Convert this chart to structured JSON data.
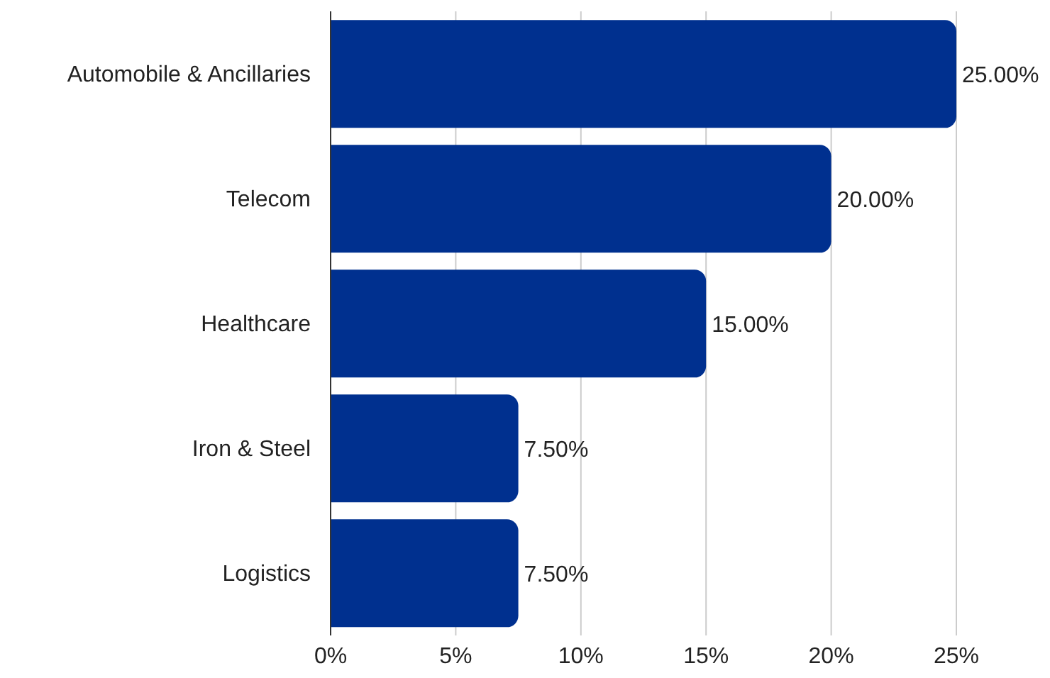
{
  "chart_data": {
    "type": "bar",
    "orientation": "horizontal",
    "categories": [
      "Automobile & Ancillaries",
      "Telecom",
      "Healthcare",
      "Iron & Steel",
      "Logistics"
    ],
    "values": [
      25,
      20,
      15,
      7.5,
      7.5
    ],
    "color": "#00308f",
    "value_labels": [
      "25.00%",
      "20.00%",
      "15.00%",
      "7.50%",
      "7.50%"
    ],
    "xlim": [
      0,
      25
    ],
    "xticks": [
      {
        "value": 0,
        "label": "0%"
      },
      {
        "value": 5,
        "label": "5%"
      },
      {
        "value": 10,
        "label": "10%"
      },
      {
        "value": 15,
        "label": "15%"
      },
      {
        "value": 20,
        "label": "20%"
      },
      {
        "value": 25,
        "label": "25%"
      }
    ],
    "grid": "x",
    "legend": false
  }
}
